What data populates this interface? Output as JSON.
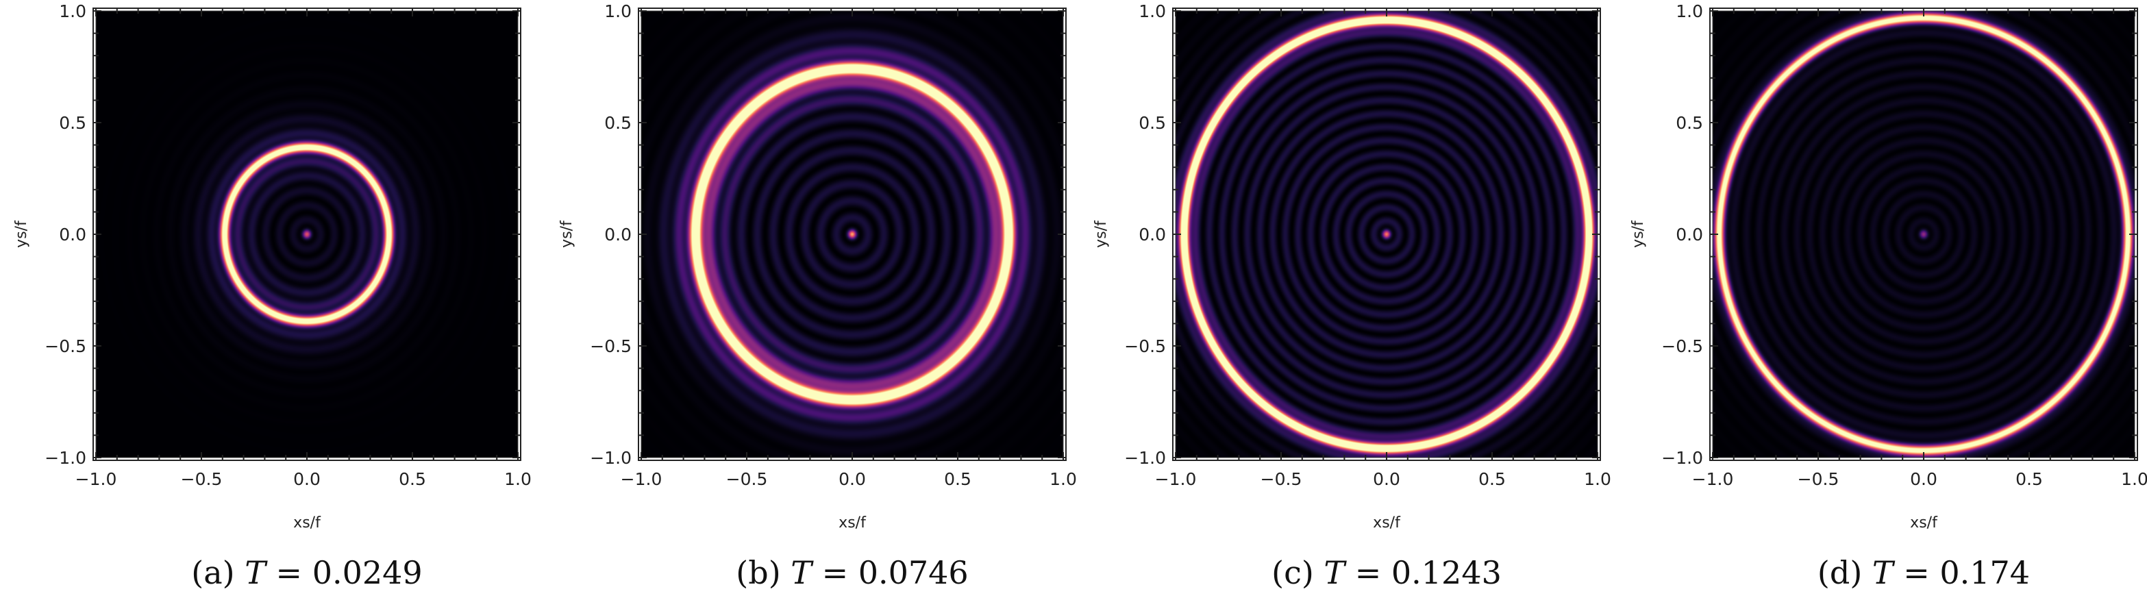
{
  "figure": {
    "colormap": [
      "#000004",
      "#1d1147",
      "#51127c",
      "#832681",
      "#b73779",
      "#e75263",
      "#fc8961",
      "#fec287",
      "#fcfdbf"
    ],
    "background_color": "#030206"
  },
  "chart_data": [
    {
      "type": "heatmap",
      "title": "",
      "caption_prefix": "(a) ",
      "caption_var": "T",
      "caption_eq": " = 0.0249",
      "xlabel": "xs/f",
      "ylabel": "ys/f",
      "xlim": [
        -1.0,
        1.0
      ],
      "ylim": [
        -1.0,
        1.0
      ],
      "xticks": [
        "−1.0",
        "−0.5",
        "0.0",
        "0.5",
        "1.0"
      ],
      "yticks": [
        "−1.0",
        "−0.5",
        "0.0",
        "0.5",
        "1.0"
      ],
      "ring_radius": 0.39,
      "ring_width": 0.022,
      "halo_strength": 0.15,
      "halo_radius": 0.6,
      "center_spot": 0.55,
      "fringe_spacing": 0.065,
      "fringe_strength": 0.12
    },
    {
      "type": "heatmap",
      "title": "",
      "caption_prefix": "(b) ",
      "caption_var": "T",
      "caption_eq": " = 0.0746",
      "xlabel": "xs/f",
      "ylabel": "ys/f",
      "xlim": [
        -1.0,
        1.0
      ],
      "ylim": [
        -1.0,
        1.0
      ],
      "xticks": [
        "−1.0",
        "−0.5",
        "0.0",
        "0.5",
        "1.0"
      ],
      "yticks": [
        "−1.0",
        "−0.5",
        "0.0",
        "0.5",
        "1.0"
      ],
      "ring_radius": 0.74,
      "ring_width": 0.03,
      "halo_strength": 0.38,
      "halo_radius": 0.95,
      "center_spot": 0.7,
      "fringe_spacing": 0.075,
      "fringe_strength": 0.2
    },
    {
      "type": "heatmap",
      "title": "",
      "caption_prefix": "(c) ",
      "caption_var": "T",
      "caption_eq": " = 0.1243",
      "xlabel": "xs/f",
      "ylabel": "ys/f",
      "xlim": [
        -1.0,
        1.0
      ],
      "ylim": [
        -1.0,
        1.0
      ],
      "xticks": [
        "−1.0",
        "−0.5",
        "0.0",
        "0.5",
        "1.0"
      ],
      "yticks": [
        "−1.0",
        "−0.5",
        "0.0",
        "0.5",
        "1.0"
      ],
      "ring_radius": 0.96,
      "ring_width": 0.024,
      "halo_strength": 0.32,
      "halo_radius": 1.05,
      "center_spot": 0.6,
      "fringe_spacing": 0.06,
      "fringe_strength": 0.22
    },
    {
      "type": "heatmap",
      "title": "",
      "caption_prefix": "(d) ",
      "caption_var": "T",
      "caption_eq": " = 0.174",
      "xlabel": "xs/f",
      "ylabel": "ys/f",
      "xlim": [
        -1.0,
        1.0
      ],
      "ylim": [
        -1.0,
        1.0
      ],
      "xticks": [
        "−1.0",
        "−0.5",
        "0.0",
        "0.5",
        "1.0"
      ],
      "yticks": [
        "−1.0",
        "−0.5",
        "0.0",
        "0.5",
        "1.0"
      ],
      "ring_radius": 0.97,
      "ring_width": 0.022,
      "halo_strength": 0.1,
      "halo_radius": 1.05,
      "center_spot": 0.35,
      "fringe_spacing": 0.06,
      "fringe_strength": 0.1
    }
  ]
}
